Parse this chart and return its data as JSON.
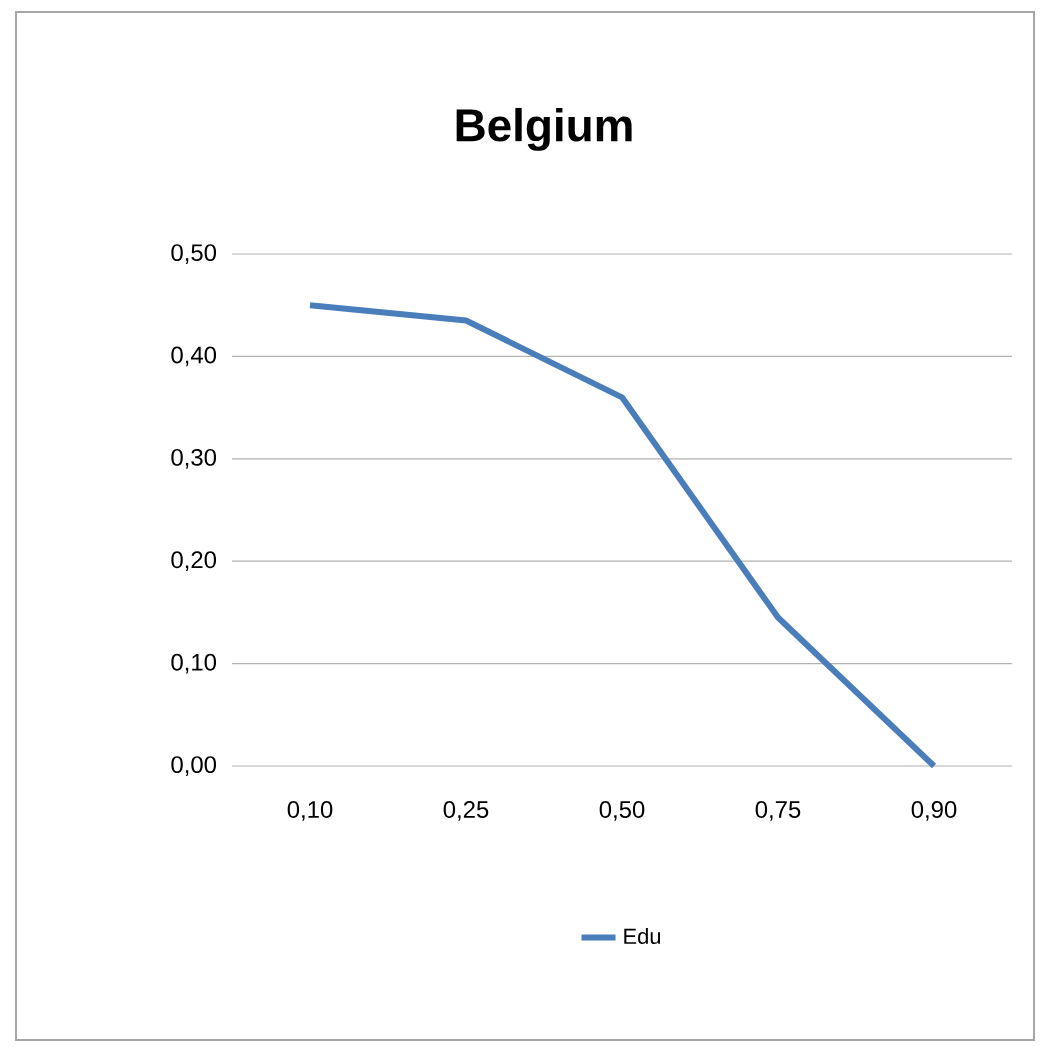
{
  "chart_data": {
    "type": "line",
    "title": "Belgium",
    "categories": [
      "0,10",
      "0,25",
      "0,50",
      "0,75",
      "0,90"
    ],
    "series": [
      {
        "name": "Edu",
        "color": "#4a7ebb",
        "values": [
          0.45,
          0.435,
          0.36,
          0.145,
          0.0
        ]
      }
    ],
    "ylim": [
      0,
      0.5
    ],
    "yticks": [
      {
        "value": 0,
        "label": "0,00"
      },
      {
        "value": 0.1,
        "label": "0,10"
      },
      {
        "value": 0.2,
        "label": "0,20"
      },
      {
        "value": 0.3,
        "label": "0,30"
      },
      {
        "value": 0.4,
        "label": "0,40"
      },
      {
        "value": 0.5,
        "label": "0,50"
      }
    ],
    "grid": "y",
    "legend": "bottom"
  }
}
